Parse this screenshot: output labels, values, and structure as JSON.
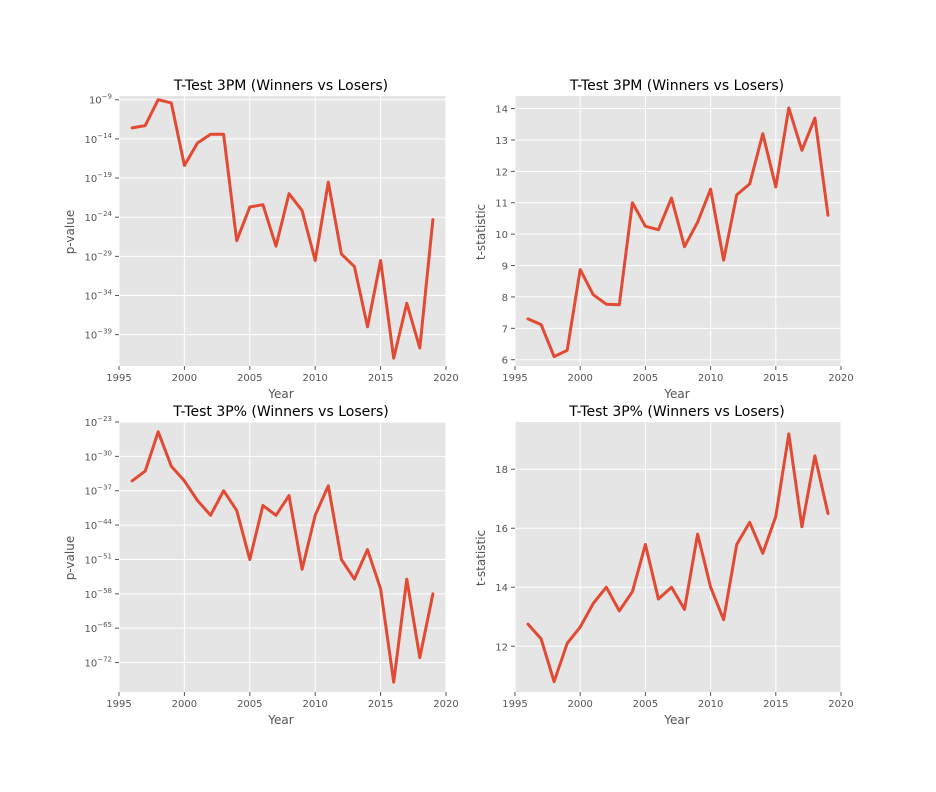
{
  "chart_data": [
    {
      "type": "line",
      "title": "T-Test 3PM (Winners vs Losers)",
      "xlabel": "Year",
      "ylabel": "p-value",
      "yscale": "log",
      "xlim": [
        1995,
        2020
      ],
      "ylim": [
        1e-43,
        3e-09
      ],
      "grid": true,
      "color": "#e24a33",
      "xticks": [
        1995,
        2000,
        2005,
        2010,
        2015,
        2020
      ],
      "yticks": [
        {
          "value": 1e-09,
          "base": "10",
          "exp": "−9"
        },
        {
          "value": 1e-14,
          "base": "10",
          "exp": "−14"
        },
        {
          "value": 1e-19,
          "base": "10",
          "exp": "−19"
        },
        {
          "value": 1e-24,
          "base": "10",
          "exp": "−24"
        },
        {
          "value": 1e-29,
          "base": "10",
          "exp": "−29"
        },
        {
          "value": 1e-34,
          "base": "10",
          "exp": "−34"
        },
        {
          "value": 1e-39,
          "base": "10",
          "exp": "−39"
        }
      ],
      "x": [
        1996,
        1997,
        1998,
        1999,
        2000,
        2001,
        2002,
        2003,
        2004,
        2005,
        2006,
        2007,
        2008,
        2009,
        2010,
        2011,
        2012,
        2013,
        2014,
        2015,
        2016,
        2017,
        2018,
        2019
      ],
      "values": [
        2.5e-13,
        5e-13,
        1e-09,
        4e-10,
        4e-18,
        3e-15,
        4e-14,
        4e-14,
        1e-27,
        2e-23,
        4e-23,
        2e-28,
        1e-21,
        7e-24,
        3e-30,
        3e-20,
        2e-29,
        5e-31,
        1e-38,
        3e-30,
        1e-42,
        1e-35,
        2e-41,
        5e-25
      ]
    },
    {
      "type": "line",
      "title": "T-Test 3PM (Winners vs Losers)",
      "xlabel": "Year",
      "ylabel": "t-statistic",
      "yscale": "linear",
      "xlim": [
        1995,
        2020
      ],
      "ylim": [
        5.8,
        14.4
      ],
      "grid": true,
      "color": "#e24a33",
      "xticks": [
        1995,
        2000,
        2005,
        2010,
        2015,
        2020
      ],
      "yticks": [
        6,
        7,
        8,
        9,
        10,
        11,
        12,
        13,
        14
      ],
      "x": [
        1996,
        1997,
        1998,
        1999,
        2000,
        2001,
        2002,
        2003,
        2004,
        2005,
        2006,
        2007,
        2008,
        2009,
        2010,
        2011,
        2012,
        2013,
        2014,
        2015,
        2016,
        2017,
        2018,
        2019
      ],
      "values": [
        7.3,
        7.12,
        6.1,
        6.3,
        8.87,
        8.07,
        7.77,
        7.75,
        11.0,
        10.25,
        10.14,
        11.15,
        9.6,
        10.38,
        11.43,
        9.17,
        11.25,
        11.6,
        13.2,
        11.5,
        14.02,
        12.67,
        13.7,
        10.6
      ]
    },
    {
      "type": "line",
      "title": "T-Test 3P% (Winners vs Losers)",
      "xlabel": "Year",
      "ylabel": "p-value",
      "yscale": "log",
      "xlim": [
        1995,
        2020
      ],
      "ylim": [
        1e-78,
        1e-23
      ],
      "grid": true,
      "color": "#e24a33",
      "xticks": [
        1995,
        2000,
        2005,
        2010,
        2015,
        2020
      ],
      "yticks": [
        {
          "value": 1e-23,
          "base": "10",
          "exp": "−23"
        },
        {
          "value": 1e-30,
          "base": "10",
          "exp": "−30"
        },
        {
          "value": 1e-37,
          "base": "10",
          "exp": "−37"
        },
        {
          "value": 1e-44,
          "base": "10",
          "exp": "−44"
        },
        {
          "value": 1e-51,
          "base": "10",
          "exp": "−51"
        },
        {
          "value": 1e-58,
          "base": "10",
          "exp": "−58"
        },
        {
          "value": 1e-65,
          "base": "10",
          "exp": "−65"
        },
        {
          "value": 1e-72,
          "base": "10",
          "exp": "−72"
        }
      ],
      "x": [
        1996,
        1997,
        1998,
        1999,
        2000,
        2001,
        2002,
        2003,
        2004,
        2005,
        2006,
        2007,
        2008,
        2009,
        2010,
        2011,
        2012,
        2013,
        2014,
        2015,
        2016,
        2017,
        2018,
        2019
      ],
      "values": [
        1e-35,
        1e-33,
        1e-25,
        1e-32,
        1e-35,
        1e-39,
        1e-42,
        1e-37,
        1e-41,
        1e-51,
        1e-40,
        1e-42,
        1e-38,
        1e-53,
        1e-42,
        1e-36,
        1e-51,
        1e-55,
        1e-49,
        1e-57,
        1e-76,
        1e-55,
        1e-71,
        1e-58
      ]
    },
    {
      "type": "line",
      "title": "T-Test 3P% (Winners vs Losers)",
      "xlabel": "Year",
      "ylabel": "t-statistic",
      "yscale": "linear",
      "xlim": [
        1995,
        2020
      ],
      "ylim": [
        10.45,
        19.6
      ],
      "grid": true,
      "color": "#e24a33",
      "xticks": [
        1995,
        2000,
        2005,
        2010,
        2015,
        2020
      ],
      "yticks": [
        12,
        14,
        16,
        18
      ],
      "x": [
        1996,
        1997,
        1998,
        1999,
        2000,
        2001,
        2002,
        2003,
        2004,
        2005,
        2006,
        2007,
        2008,
        2009,
        2010,
        2011,
        2012,
        2013,
        2014,
        2015,
        2016,
        2017,
        2018,
        2019
      ],
      "values": [
        12.75,
        12.25,
        10.8,
        12.1,
        12.65,
        13.45,
        14.0,
        13.2,
        13.85,
        15.45,
        13.6,
        14.0,
        13.25,
        15.8,
        14.0,
        12.9,
        15.45,
        16.2,
        15.15,
        16.4,
        19.2,
        16.05,
        18.45,
        16.5
      ]
    }
  ]
}
